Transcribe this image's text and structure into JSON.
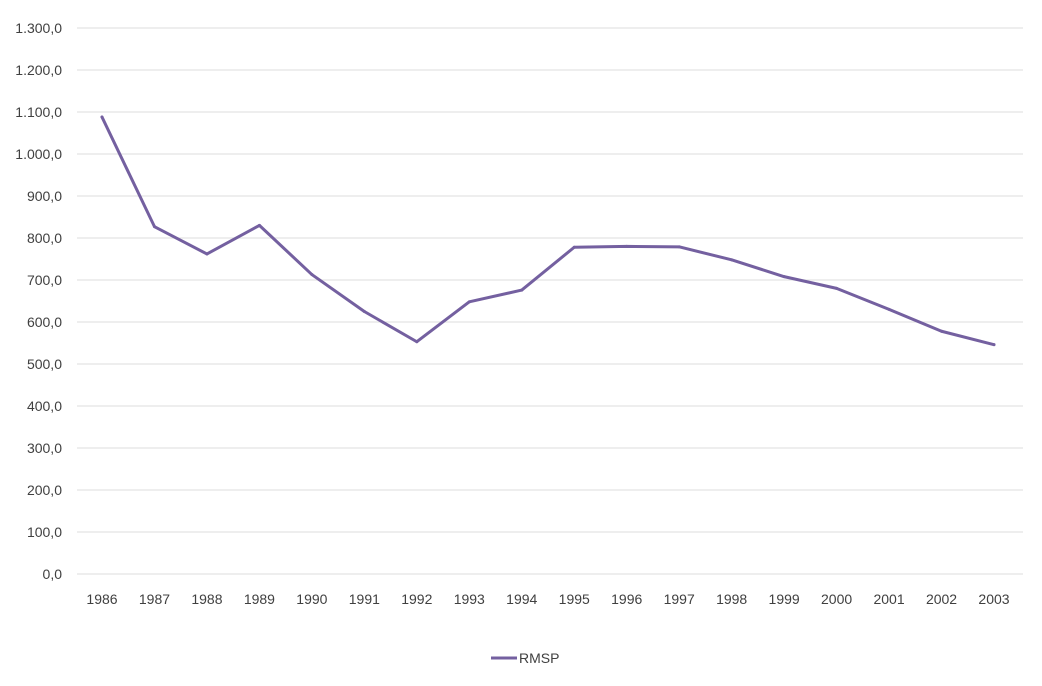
{
  "chart_data": {
    "type": "line",
    "title": "",
    "xlabel": "",
    "ylabel": "",
    "categories": [
      "1986",
      "1987",
      "1988",
      "1989",
      "1990",
      "1991",
      "1992",
      "1993",
      "1994",
      "1995",
      "1996",
      "1997",
      "1998",
      "1999",
      "2000",
      "2001",
      "2002",
      "2003"
    ],
    "series": [
      {
        "name": "RMSP",
        "color": "#7460a0",
        "values": [
          1088,
          827,
          762,
          830,
          713,
          625,
          553,
          648,
          676,
          778,
          780,
          779,
          748,
          708,
          680,
          630,
          578,
          546
        ]
      }
    ],
    "ylim": [
      0,
      1300
    ],
    "yticks": [
      0,
      100,
      200,
      300,
      400,
      500,
      600,
      700,
      800,
      900,
      1000,
      1100,
      1200,
      1300
    ],
    "ytick_labels": [
      "0,0",
      "100,0",
      "200,0",
      "300,0",
      "400,0",
      "500,0",
      "600,0",
      "700,0",
      "800,0",
      "900,0",
      "1.000,0",
      "1.100,0",
      "1.200,0",
      "1.300,0"
    ],
    "grid": true,
    "legend_position": "bottom-center"
  }
}
